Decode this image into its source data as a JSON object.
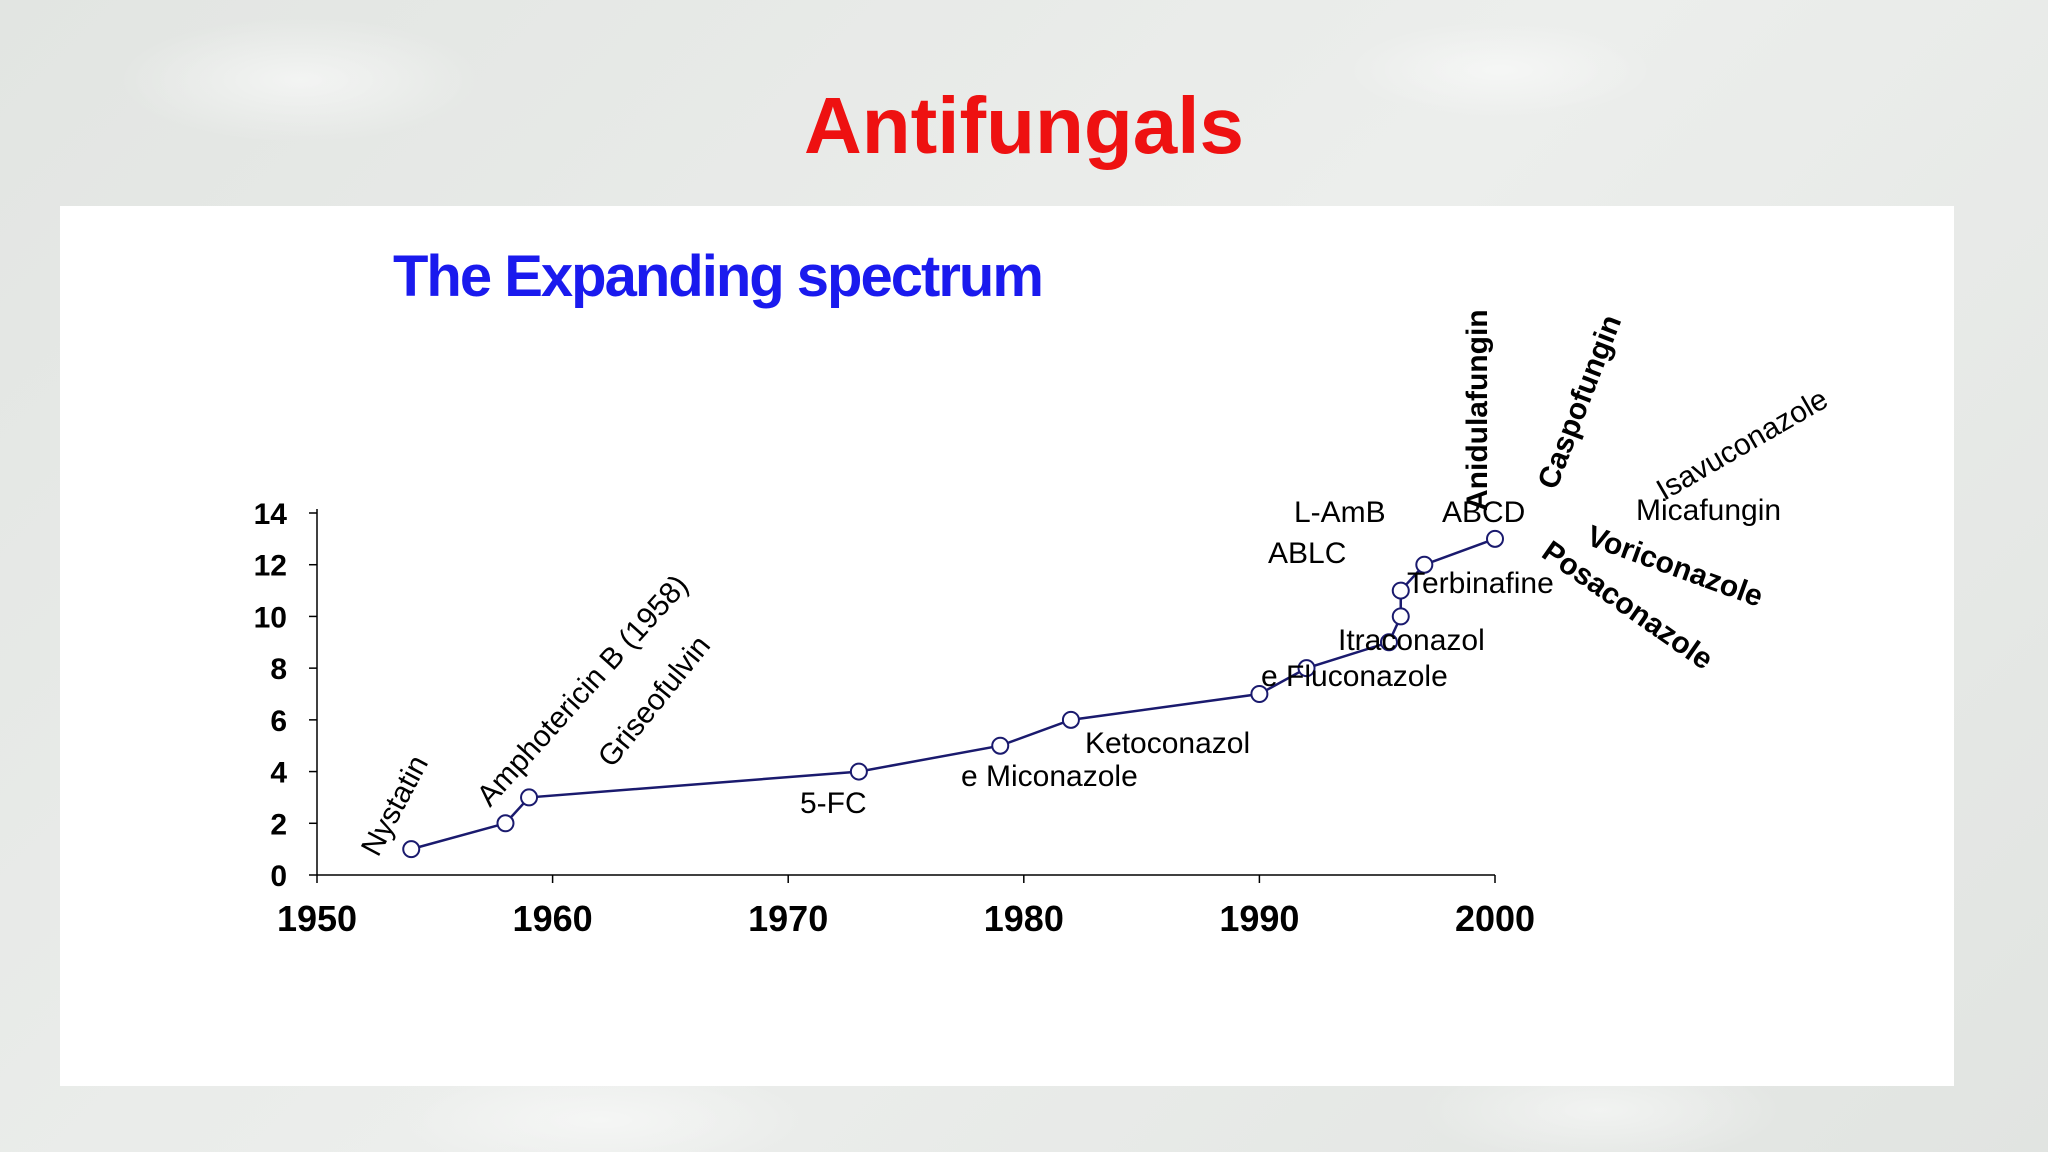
{
  "slide": {
    "title": "Antifungals"
  },
  "chart_data": {
    "type": "line",
    "title": "The Expanding spectrum",
    "xlabel": "",
    "ylabel": "",
    "xlim": [
      1950,
      2000
    ],
    "ylim": [
      0,
      14
    ],
    "x_ticks": [
      "1950",
      "1960",
      "1970",
      "1980",
      "1990",
      "2000"
    ],
    "y_ticks": [
      "0",
      "2",
      "4",
      "6",
      "8",
      "10",
      "12",
      "14"
    ],
    "grid": false,
    "series": [
      {
        "points": [
          {
            "x": 1954,
            "y": 1
          },
          {
            "x": 1958,
            "y": 2
          },
          {
            "x": 1959,
            "y": 3
          },
          {
            "x": 1973,
            "y": 4
          },
          {
            "x": 1979,
            "y": 5
          },
          {
            "x": 1982,
            "y": 6
          },
          {
            "x": 1990,
            "y": 7
          },
          {
            "x": 1992,
            "y": 8
          },
          {
            "x": 1995.5,
            "y": 9
          },
          {
            "x": 1996,
            "y": 10
          },
          {
            "x": 1996,
            "y": 11
          },
          {
            "x": 1997,
            "y": 12
          },
          {
            "x": 2000,
            "y": 13
          }
        ]
      }
    ],
    "annotations": [
      {
        "text": "Nystatin",
        "bold": false
      },
      {
        "text": "Amphotericin B (1958)",
        "bold": false
      },
      {
        "text": "Griseofulvin",
        "bold": false
      },
      {
        "text": "5-FC",
        "bold": false
      },
      {
        "text": "e Miconazole",
        "bold": false
      },
      {
        "text": "Ketoconazol",
        "bold": false
      },
      {
        "text": "e Fluconazole",
        "bold": false
      },
      {
        "text": "Itraconazol",
        "bold": false
      },
      {
        "text": "Terbinafine",
        "bold": false
      },
      {
        "text": "ABLC",
        "bold": false
      },
      {
        "text": "L-AmB",
        "bold": false
      },
      {
        "text": "ABCD",
        "bold": false
      },
      {
        "text": "Anidulafungin",
        "bold": true
      },
      {
        "text": "Caspofungin",
        "bold": true
      },
      {
        "text": "Isavuconazole",
        "bold": false
      },
      {
        "text": "Micafungin",
        "bold": false
      },
      {
        "text": "Voriconazole",
        "bold": true
      },
      {
        "text": "Posaconazole",
        "bold": true
      }
    ],
    "colors": {
      "line": "#1a1a6e",
      "marker_fill": "#ffffff",
      "title": "#1a1aee",
      "axis": "#000000",
      "text": "#000000"
    }
  }
}
